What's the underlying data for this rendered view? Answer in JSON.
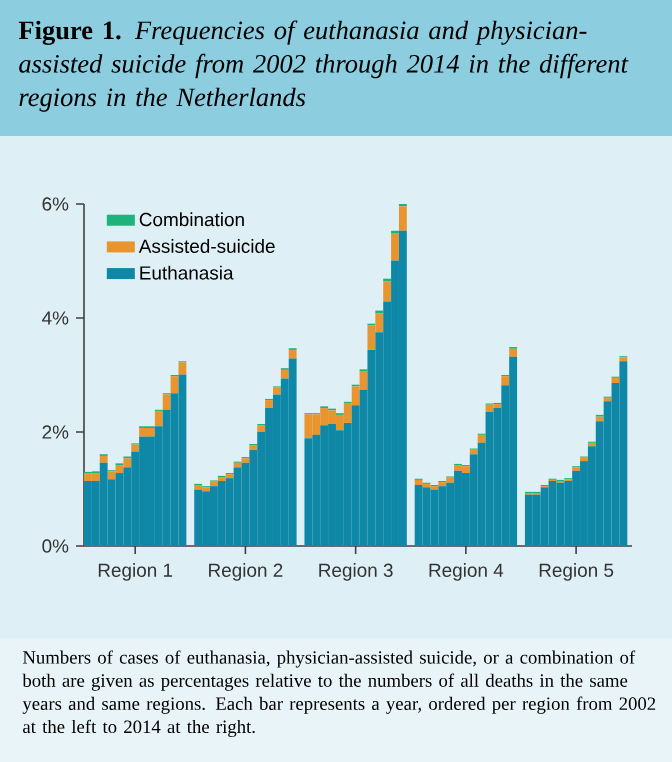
{
  "chart_data": {
    "type": "bar",
    "stacked": true,
    "title": "**Figure 1.** *Frequencies of euthanasia and physician-assisted suicide from 2002 through 2014 in the different regions in the Netherlands*",
    "annotations": [
      "Numbers of cases of euthanasia, physician-assisted suicide, or a combination of both are given as percentages relative to the numbers of all deaths in the same years and same regions. Each bar represents a year, ordered per region from 2002 at the left to 2014 at the right."
    ],
    "categories": [
      null,
      null,
      null,
      null,
      null,
      null,
      "Region 1",
      null,
      null,
      null,
      null,
      null,
      null,
      null,
      null,
      null,
      null,
      null,
      null,
      null,
      "Region 2",
      null,
      null,
      null,
      null,
      null,
      null,
      null,
      null,
      null,
      null,
      null,
      null,
      null,
      "Region 3",
      null,
      null,
      null,
      null,
      null,
      null,
      null,
      null,
      null,
      null,
      null,
      null,
      null,
      "Region 4",
      null,
      null,
      null,
      null,
      null,
      null,
      null,
      null,
      null,
      null,
      null,
      null,
      null,
      "Region 5",
      null,
      null,
      null,
      null,
      null,
      null
    ],
    "series": [
      {
        "name": "Euthanasia",
        "color": "#0e88a6",
        "values": [
          1.14,
          1.14,
          1.46,
          1.17,
          1.28,
          1.38,
          1.66,
          1.92,
          1.92,
          2.1,
          2.39,
          2.68,
          3.01,
          null,
          0.99,
          0.96,
          1.05,
          1.14,
          1.19,
          1.38,
          1.46,
          1.69,
          2.0,
          2.42,
          2.66,
          2.94,
          3.29,
          null,
          1.89,
          1.95,
          2.12,
          2.14,
          2.03,
          2.16,
          2.47,
          2.74,
          3.44,
          3.75,
          4.29,
          5.01,
          5.53,
          null,
          1.07,
          1.03,
          0.99,
          1.05,
          1.11,
          1.32,
          1.28,
          1.61,
          1.81,
          2.35,
          2.42,
          2.82,
          3.32,
          null,
          0.9,
          0.9,
          1.03,
          1.14,
          1.11,
          1.14,
          1.32,
          1.49,
          1.75,
          2.19,
          2.54,
          2.86,
          3.24
        ]
      },
      {
        "name": "Assisted-suicide",
        "color": "#e8952f",
        "values": [
          0.14,
          0.14,
          0.12,
          0.14,
          0.14,
          0.16,
          0.12,
          0.15,
          0.15,
          0.27,
          0.27,
          0.3,
          0.21,
          null,
          0.08,
          0.07,
          0.08,
          0.07,
          0.07,
          0.08,
          0.08,
          0.08,
          0.12,
          0.14,
          0.12,
          0.15,
          0.15,
          null,
          0.42,
          0.36,
          0.3,
          0.24,
          0.27,
          0.35,
          0.33,
          0.33,
          0.43,
          0.33,
          0.35,
          0.47,
          0.43,
          null,
          0.09,
          0.06,
          0.06,
          0.07,
          0.09,
          0.1,
          0.12,
          0.08,
          0.14,
          0.13,
          0.07,
          0.16,
          0.14,
          null,
          0.03,
          0.03,
          0.02,
          0.02,
          0.03,
          0.03,
          0.06,
          0.06,
          0.06,
          0.08,
          0.06,
          0.09,
          0.07
        ]
      },
      {
        "name": "Combination",
        "color": "#1db37a",
        "values": [
          0.02,
          0.03,
          0.03,
          0.02,
          0.03,
          0.03,
          0.02,
          0.03,
          0.03,
          0.02,
          0.02,
          0.02,
          0.02,
          null,
          0.02,
          0.02,
          0.02,
          0.02,
          0.02,
          0.02,
          0.02,
          0.02,
          0.02,
          0.02,
          0.02,
          0.03,
          0.03,
          null,
          0.02,
          0.02,
          0.03,
          0.03,
          0.03,
          0.02,
          0.03,
          0.03,
          0.03,
          0.05,
          0.05,
          0.05,
          0.04,
          null,
          0.02,
          0.02,
          0.02,
          0.02,
          0.02,
          0.02,
          0.02,
          0.02,
          0.02,
          0.02,
          0.02,
          0.02,
          0.03,
          null,
          0.02,
          0.02,
          0.02,
          0.02,
          0.02,
          0.02,
          0.02,
          0.02,
          0.02,
          0.03,
          0.02,
          0.02,
          0.02
        ]
      }
    ],
    "ylim": [
      0,
      6
    ],
    "yticks": [
      {
        "value": 0,
        "label": "0%"
      },
      {
        "value": 2,
        "label": "2%"
      },
      {
        "value": 4,
        "label": "4%"
      },
      {
        "value": 6,
        "label": "6%"
      }
    ],
    "legend": "top left"
  }
}
